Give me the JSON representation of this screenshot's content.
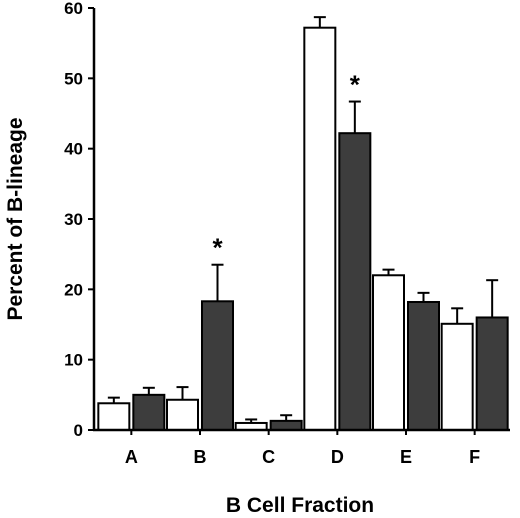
{
  "chart_data": {
    "type": "bar",
    "categories": [
      "A",
      "B",
      "C",
      "D",
      "E",
      "F"
    ],
    "series": [
      {
        "values": [
          3.8,
          4.3,
          1.0,
          57.2,
          22.0,
          15.1
        ],
        "errors": [
          0.8,
          1.8,
          0.5,
          1.5,
          0.8,
          2.2
        ],
        "color": "#ffffff"
      },
      {
        "values": [
          5.0,
          18.3,
          1.3,
          42.2,
          18.2,
          16.0
        ],
        "errors": [
          1.0,
          5.2,
          0.8,
          4.5,
          1.3,
          5.3
        ],
        "color": "#3d3d3d"
      }
    ],
    "significance": [
      "",
      "*",
      "",
      "*",
      "",
      ""
    ],
    "yticks": [
      0,
      10,
      20,
      30,
      40,
      50,
      60
    ],
    "xlabel": "B Cell Fraction",
    "ylabel": "Percent of B-lineage",
    "ylim": [
      0,
      60
    ]
  }
}
